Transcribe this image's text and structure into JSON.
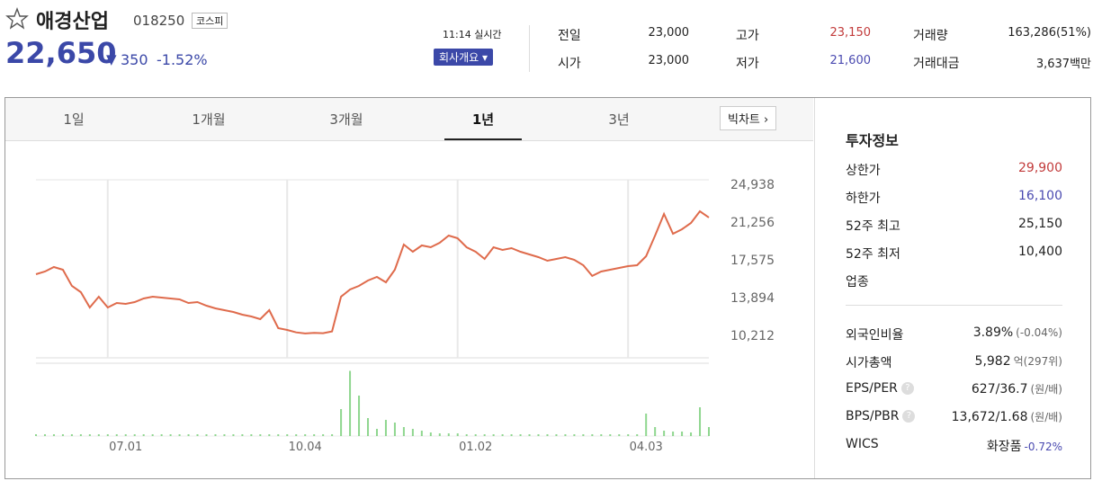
{
  "header": {
    "name": "애경산업",
    "code": "018250",
    "market": "코스피",
    "price": "22,650",
    "change": "350",
    "change_rate": "-1.52%",
    "time": "11:14 실시간",
    "company_button": "회사개요"
  },
  "quote": {
    "rows": [
      [
        {
          "label": "전일",
          "value": "23,000"
        },
        {
          "label": "고가",
          "value": "23,150"
        },
        {
          "label": "거래량",
          "value": "163,286(51%)"
        }
      ],
      [
        {
          "label": "시가",
          "value": "23,000"
        },
        {
          "label": "저가",
          "value": "21,600"
        },
        {
          "label": "거래대금",
          "value": "3,637백만"
        }
      ]
    ]
  },
  "chart_data": {
    "type": "line",
    "tabs": [
      "1일",
      "1개월",
      "3개월",
      "1년",
      "3년"
    ],
    "big_chart": "빅차트",
    "categories": [
      null,
      null,
      null,
      null,
      null,
      null,
      null,
      null,
      null,
      null,
      "07.01",
      null,
      null,
      null,
      null,
      null,
      null,
      null,
      null,
      null,
      null,
      null,
      null,
      null,
      null,
      null,
      null,
      null,
      null,
      null,
      "10.04",
      null,
      null,
      null,
      null,
      null,
      null,
      null,
      null,
      null,
      null,
      null,
      null,
      null,
      null,
      null,
      null,
      null,
      null,
      "01.02",
      null,
      null,
      null,
      null,
      null,
      null,
      null,
      null,
      null,
      null,
      null,
      null,
      null,
      null,
      null,
      null,
      null,
      null,
      "04.03",
      null,
      null,
      null,
      null,
      null,
      null,
      null
    ],
    "color": "#df6b4c",
    "values": [
      16173,
      16436,
      16874,
      16611,
      15034,
      14420,
      12930,
      13982,
      12930,
      13368,
      13280,
      13456,
      13807,
      13982,
      13894,
      13807,
      13719,
      13368,
      13456,
      13105,
      12842,
      12667,
      12491,
      12228,
      12053,
      11790,
      12667,
      10914,
      10739,
      10500,
      10400,
      10450,
      10420,
      10600,
      13982,
      14683,
      15034,
      15560,
      15910,
      15384,
      16611,
      19066,
      18364,
      18978,
      18802,
      19241,
      19942,
      19679,
      18802,
      18364,
      17663,
      18802,
      18539,
      18715,
      18364,
      18100,
      17838,
      17487,
      17663,
      17838,
      17575,
      17049,
      16008,
      16436,
      16611,
      16786,
      16961,
      17049,
      17926,
      19942,
      22045,
      20117,
      20555,
      21169,
      22309,
      21700
    ],
    "ylim": [
      8022,
      25376
    ],
    "yticks": [
      {
        "value": 10212,
        "label": "10,212"
      },
      {
        "value": 13894,
        "label": "13,894"
      },
      {
        "value": 17575,
        "label": "17,575"
      },
      {
        "value": 21256,
        "label": "21,256"
      },
      {
        "value": 24938,
        "label": "24,938"
      }
    ],
    "volume": {
      "color": "#8fd68f",
      "ylim": [
        0,
        1500000
      ],
      "values": [
        40000,
        40000,
        40000,
        40000,
        40000,
        40000,
        40000,
        40000,
        40000,
        40000,
        40000,
        40000,
        40000,
        40000,
        40000,
        40000,
        40000,
        40000,
        40000,
        40000,
        40000,
        40000,
        40000,
        40000,
        40000,
        40000,
        40000,
        40000,
        40000,
        40000,
        40000,
        40000,
        40000,
        40000,
        600000,
        1450000,
        900000,
        400000,
        160000,
        360000,
        300000,
        200000,
        160000,
        120000,
        80000,
        60000,
        60000,
        60000,
        40000,
        40000,
        40000,
        40000,
        40000,
        40000,
        40000,
        40000,
        40000,
        40000,
        40000,
        40000,
        40000,
        40000,
        40000,
        40000,
        40000,
        40000,
        40000,
        40000,
        500000,
        200000,
        120000,
        100000,
        100000,
        80000,
        640000,
        200000
      ]
    }
  },
  "invest": {
    "title": "투자정보",
    "rows": [
      {
        "label": "상한가",
        "value": "29,900"
      },
      {
        "label": "하한가",
        "value": "16,100"
      },
      {
        "label": "52주 최고",
        "value": "25,150"
      },
      {
        "label": "52주 최저",
        "value": "10,400"
      },
      {
        "label": "업종"
      }
    ],
    "rows2": [
      {
        "label": "외국인비율",
        "value": "3.89%",
        "note": "(-0.04%)"
      },
      {
        "label": "시가총액",
        "value": "5,982",
        "note": "억(297위)"
      },
      {
        "label": "EPS/PER",
        "value": "627/36.7",
        "note": "(원/배)"
      },
      {
        "label": "BPS/PBR",
        "value": "13,672/1.68",
        "note": "(원/배)"
      },
      {
        "label": "WICS",
        "value": "화장품",
        "note": "-0.72%"
      }
    ]
  }
}
